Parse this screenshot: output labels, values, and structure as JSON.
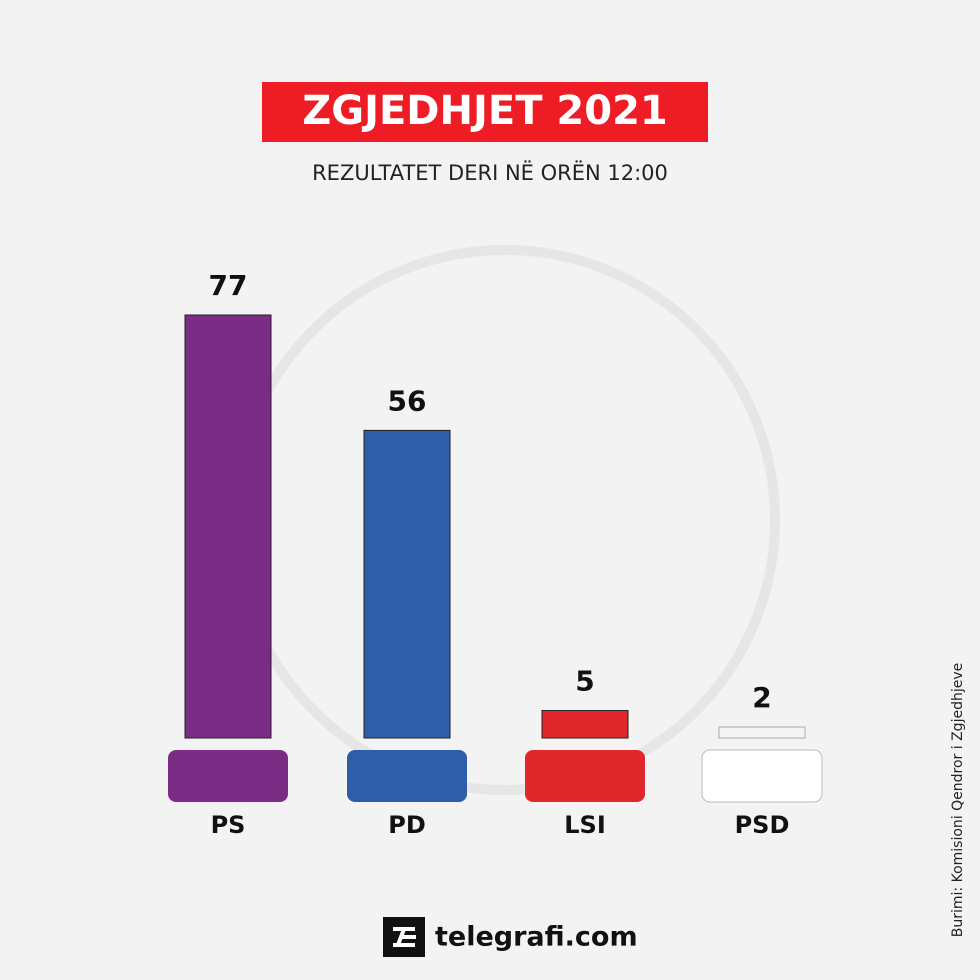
{
  "chart_data": {
    "type": "bar",
    "title": "ZGJEDHJET 2021",
    "subtitle": "REZULTATET DERI NË ORËN 12:00",
    "categories": [
      "PS",
      "PD",
      "LSI",
      "PSD"
    ],
    "values": [
      77,
      56,
      5,
      2
    ],
    "colors": [
      "#7b2d86",
      "#2f5ea8",
      "#e0282c",
      "#f4f4f4"
    ],
    "source": "Burimi: Komisioni Qendror i Zgjedhjeve",
    "brand": "telegrafi.com"
  }
}
